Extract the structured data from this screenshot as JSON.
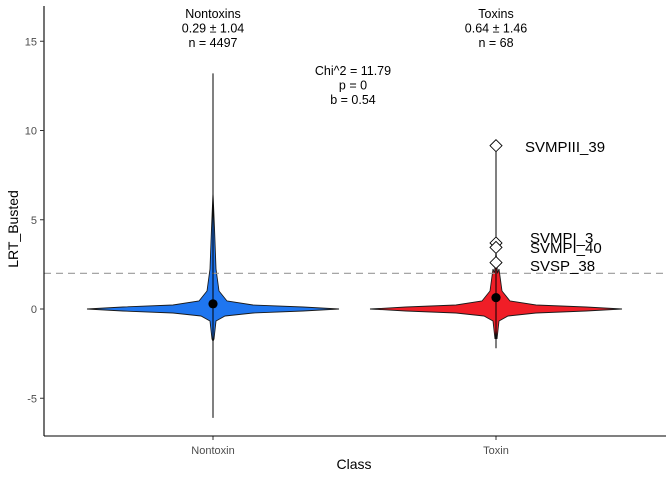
{
  "chart_data": {
    "type": "violin",
    "xlabel": "Class",
    "ylabel": "LRT_Busted",
    "categories": [
      "Nontoxin",
      "Toxin"
    ],
    "ylim": [
      -7,
      17
    ],
    "yticks": [
      -5,
      0,
      5,
      10,
      15
    ],
    "y_tick_labels": [
      "-5",
      "0",
      "5",
      "10",
      "15"
    ],
    "grid": false,
    "reference_line": {
      "y": 2.0,
      "style": "dashed",
      "color": "#999999"
    },
    "groups": [
      {
        "category": "Nontoxin",
        "color": "#1F76F0",
        "mean": 0.29,
        "whisker_min": -6.1,
        "whisker_max": 13.2,
        "header": [
          "Nontoxins",
          "0.29 ± 1.04",
          "n = 4497"
        ]
      },
      {
        "category": "Toxin",
        "color": "#F01E27",
        "mean": 0.64,
        "whisker_min": -2.2,
        "whisker_max": 9.1,
        "header": [
          "Toxins",
          "0.64 ± 1.46",
          "n = 68"
        ],
        "outliers": [
          {
            "y": 9.15,
            "label": "SVMPIII_39"
          },
          {
            "y": 3.7,
            "label": "SVMPI_3"
          },
          {
            "y": 3.45,
            "label": "SVMPI_40"
          },
          {
            "y": 2.6,
            "label": "SVSP_38"
          }
        ]
      }
    ],
    "test_annotation": [
      "Chi^2 = 11.79",
      "p = 0",
      "b = 0.54"
    ]
  }
}
